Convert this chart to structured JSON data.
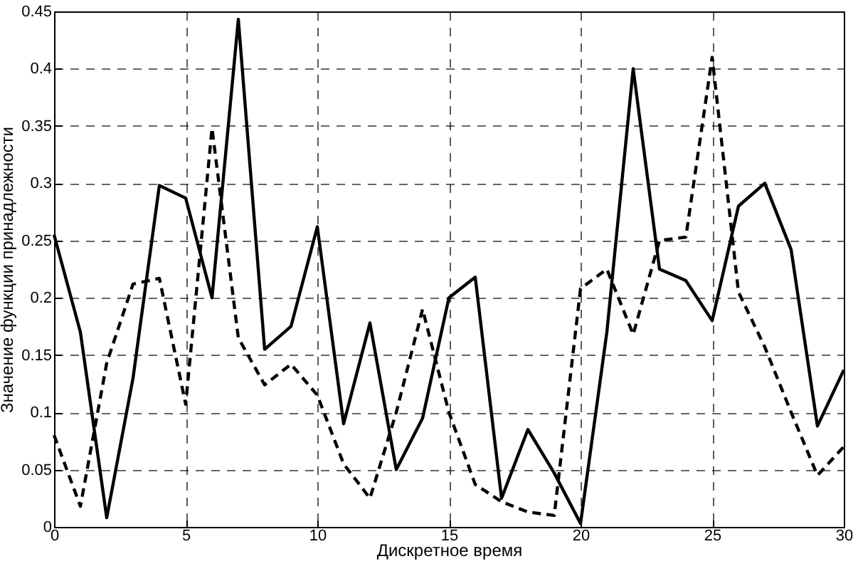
{
  "chart_data": {
    "type": "line",
    "xlabel": "Дискретное время",
    "ylabel": "Значение функции принадлежности",
    "x": [
      0,
      1,
      2,
      3,
      4,
      5,
      6,
      7,
      8,
      9,
      10,
      11,
      12,
      13,
      14,
      15,
      16,
      17,
      18,
      19,
      20,
      21,
      22,
      23,
      24,
      25,
      26,
      27,
      28,
      29,
      30
    ],
    "series": [
      {
        "color": "#000000",
        "line_style": "solid",
        "values": [
          0.255,
          0.17,
          0.008,
          0.13,
          0.298,
          0.287,
          0.2,
          0.443,
          0.155,
          0.175,
          0.262,
          0.09,
          0.178,
          0.05,
          0.095,
          0.2,
          0.218,
          0.025,
          0.085,
          0.047,
          0.003,
          0.17,
          0.4,
          0.225,
          0.215,
          0.18,
          0.28,
          0.3,
          0.242,
          0.088,
          0.137
        ]
      },
      {
        "color": "#000000",
        "line_style": "dashed",
        "values": [
          0.08,
          0.018,
          0.143,
          0.212,
          0.217,
          0.107,
          0.348,
          0.165,
          0.124,
          0.142,
          0.115,
          0.055,
          0.025,
          0.1,
          0.19,
          0.1,
          0.037,
          0.022,
          0.013,
          0.01,
          0.208,
          0.225,
          0.168,
          0.25,
          0.253,
          0.41,
          0.205,
          0.157,
          0.1,
          0.045,
          0.07
        ]
      }
    ],
    "xlim": [
      0,
      30
    ],
    "xticks": [
      0,
      5,
      10,
      15,
      20,
      25,
      30
    ],
    "ylim": [
      0,
      0.45
    ],
    "yticks": [
      0,
      0.05,
      0.1,
      0.15,
      0.2,
      0.25,
      0.3,
      0.35,
      0.4,
      0.45
    ],
    "grid": true,
    "marker": "none"
  }
}
